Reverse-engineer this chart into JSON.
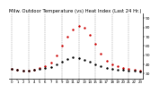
{
  "title": "Milw. Outdoor Temperature (vs) Heat Index (Last 24 Hr.)",
  "title_fontsize": 3.8,
  "outdoor_temp": [
    35,
    34,
    33,
    33,
    34,
    35,
    36,
    37,
    40,
    43,
    46,
    48,
    47,
    45,
    43,
    40,
    38,
    36,
    35,
    34,
    34,
    33,
    33,
    32
  ],
  "heat_index": [
    35,
    34,
    33,
    33,
    34,
    36,
    38,
    42,
    50,
    60,
    70,
    78,
    82,
    80,
    72,
    62,
    52,
    44,
    40,
    38,
    36,
    35,
    34,
    33
  ],
  "temp_color": "#000000",
  "heat_color": "#cc0000",
  "grid_color": "#888888",
  "bg_color": "#ffffff",
  "ylim_min": 25,
  "ylim_max": 95,
  "ytick_values": [
    30,
    40,
    50,
    60,
    70,
    80,
    90
  ],
  "ylabel_fontsize": 3.2,
  "xlabel_fontsize": 2.8,
  "marker_size": 1.5,
  "x_labels": [
    "0",
    "1",
    "2",
    "3",
    "4",
    "5",
    "6",
    "7",
    "8",
    "9",
    "10",
    "11",
    "12",
    "13",
    "14",
    "15",
    "16",
    "17",
    "18",
    "19",
    "20",
    "21",
    "22",
    "23"
  ]
}
